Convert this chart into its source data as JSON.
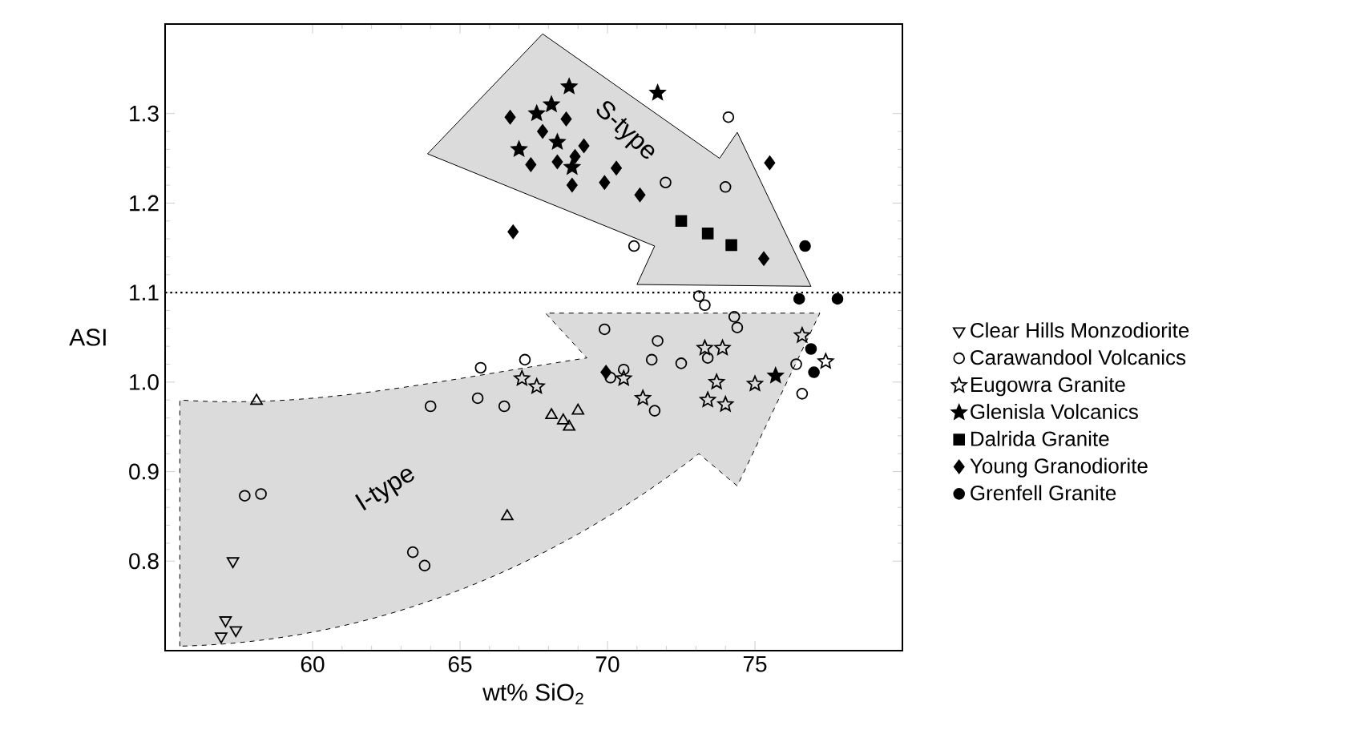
{
  "chart_data": {
    "type": "scatter",
    "xlabel": "wt% SiO$_{2}$",
    "ylabel": "ASI",
    "xlim": [
      55,
      80
    ],
    "ylim": [
      0.7,
      1.4
    ],
    "xticks": [
      60,
      65,
      70,
      75
    ],
    "yticks": [
      0.8,
      0.9,
      {
        "value": 1.0,
        "label": "1.0"
      },
      1.1,
      1.2,
      1.3
    ],
    "legend": "right",
    "grid": false,
    "annotations": [
      "S-type",
      "I-type"
    ],
    "ref_lines": [
      {
        "axis": "y",
        "value": 1.1,
        "line_style": "dotted",
        "color": "#000000"
      }
    ],
    "series": [
      {
        "name": "Clear Hills Monzodiorite",
        "color": "#000000",
        "marker": "triangle",
        "x": [
          57.3,
          57.05,
          57.4,
          56.9
        ],
        "values": [
          0.8,
          0.734,
          0.723,
          0.716
        ]
      },
      {
        "name": "Carawandool Volcanics",
        "color": "#000000",
        "marker": "circle",
        "x": [
          57.7,
          58.25,
          63.4,
          63.8,
          64.0,
          65.6,
          65.7,
          66.5,
          67.2,
          69.9,
          70.55,
          70.1,
          71.7,
          71.5,
          72.5,
          71.6,
          73.1,
          73.3,
          74.3,
          74.4,
          73.4,
          76.4,
          76.6,
          74.1,
          71.97,
          74.0,
          70.9
        ],
        "values": [
          0.873,
          0.875,
          0.81,
          0.795,
          0.973,
          0.982,
          1.016,
          0.973,
          1.025,
          1.059,
          1.014,
          1.005,
          1.046,
          1.025,
          1.021,
          0.968,
          1.096,
          1.086,
          1.073,
          1.061,
          1.027,
          1.02,
          0.987,
          1.296,
          1.223,
          1.218,
          1.152
        ]
      },
      {
        "name": "Eugowra Granite",
        "color": "#000000",
        "marker": "star",
        "x": [
          67.1,
          67.6,
          70.55,
          71.2,
          73.3,
          73.9,
          73.7,
          73.4,
          74.0,
          75.0,
          76.6,
          77.4
        ],
        "values": [
          1.004,
          0.995,
          1.004,
          0.982,
          1.038,
          1.038,
          1.0,
          0.98,
          0.975,
          0.998,
          1.052,
          1.023
        ]
      },
      {
        "name": "Glenisla Volcanics",
        "color": "#000000",
        "marker": "star",
        "x": [
          67.0,
          67.6,
          68.1,
          68.7,
          71.7,
          68.3,
          68.8,
          75.7
        ],
        "values": [
          1.26,
          1.3,
          1.31,
          1.33,
          1.323,
          1.268,
          1.24,
          1.007
        ]
      },
      {
        "name": "Dalrida Granite",
        "color": "#000000",
        "marker": "square",
        "x": [
          72.5,
          73.4,
          74.2
        ],
        "values": [
          1.18,
          1.166,
          1.153
        ]
      },
      {
        "name": "Young Granodiorite",
        "color": "#000000",
        "marker": "diamond",
        "x": [
          66.7,
          66.8,
          75.5,
          71.1,
          75.3,
          70.3,
          69.9,
          68.8,
          67.4,
          69.95,
          67.8,
          69.2,
          68.3,
          68.9,
          68.6
        ],
        "values": [
          1.296,
          1.168,
          1.245,
          1.209,
          1.138,
          1.239,
          1.223,
          1.22,
          1.243,
          1.011,
          1.28,
          1.264,
          1.246,
          1.252,
          1.294
        ]
      },
      {
        "name": "Grenfell Granite",
        "color": "#000000",
        "marker": "circle",
        "x": [
          76.7,
          76.5,
          77.8,
          76.9,
          77.0
        ],
        "values": [
          1.152,
          1.093,
          1.093,
          1.037,
          1.011
        ]
      },
      {
        "color": "#000000",
        "marker": "triangle",
        "x": [
          58.1,
          66.6,
          68.1,
          68.5,
          68.7,
          69.0
        ],
        "values": [
          0.979,
          0.85,
          0.963,
          0.957,
          0.95,
          0.968
        ]
      }
    ]
  }
}
